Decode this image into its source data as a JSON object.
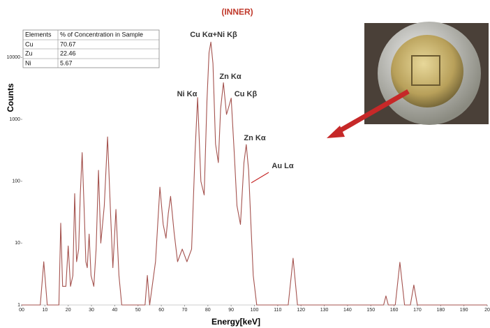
{
  "chart_data": {
    "type": "line",
    "title": "(INNER)",
    "xlabel": "Energy[keV]",
    "ylabel": "Counts",
    "log_y": true,
    "xlim": [
      0,
      200
    ],
    "ylim": [
      1,
      30000
    ],
    "xticks": [
      {
        "value": 0,
        "label": "00"
      },
      10,
      20,
      30,
      40,
      50,
      60,
      70,
      80,
      90,
      100,
      110,
      120,
      130,
      140,
      150,
      160,
      170,
      180,
      190,
      {
        "value": 200,
        "label": "20"
      }
    ],
    "yticks": [
      1,
      10,
      100,
      1000,
      10000
    ],
    "x": [
      0,
      8,
      9.5,
      11,
      16,
      16.8,
      17.6,
      19,
      20,
      21,
      22,
      22.8,
      23.6,
      24.5,
      25.2,
      26,
      26.8,
      27.6,
      28.2,
      29,
      29.8,
      31,
      32,
      33,
      34,
      35.5,
      36.9,
      38.2,
      39.2,
      40.5,
      41.8,
      43,
      53,
      54,
      55,
      57.5,
      59.4,
      60.8,
      62,
      63,
      64,
      65.5,
      67,
      69,
      71,
      73,
      74.5,
      75.6,
      77,
      78.4,
      79.6,
      80.5,
      81.3,
      82.2,
      83.3,
      84.5,
      85.5,
      86.7,
      88,
      88.8,
      90,
      91.3,
      92.5,
      94,
      95.5,
      96.5,
      97.5,
      98.5,
      99.5,
      101,
      114.5,
      116.6,
      118.5,
      155.5,
      156.5,
      157.5,
      160.5,
      162.5,
      164.5,
      167,
      168.5,
      170,
      200
    ],
    "series": [
      {
        "color": "#a4524e",
        "values": [
          1,
          1,
          5,
          1,
          1,
          21,
          2,
          2,
          9,
          2,
          3,
          63,
          5,
          8,
          60,
          290,
          40,
          5,
          4,
          14,
          3,
          2,
          8,
          150,
          10,
          40,
          520,
          30,
          4,
          35,
          3,
          1,
          1,
          3,
          1,
          5,
          80,
          20,
          12,
          30,
          57,
          15,
          5,
          8,
          5,
          8,
          300,
          2250,
          100,
          60,
          2000,
          12000,
          17700,
          8000,
          400,
          200,
          1500,
          3900,
          1200,
          1500,
          2200,
          300,
          40,
          20,
          200,
          390,
          150,
          20,
          3,
          1,
          1,
          5.7,
          1,
          1,
          1.4,
          1,
          1,
          4.9,
          1,
          1,
          2.1,
          1,
          1
        ]
      }
    ],
    "annotations": [
      "Cu Kα+Ni Kβ",
      "Zn Kα",
      "Ni Kα",
      "Cu Kβ",
      "Zn Kα",
      "Au Lα"
    ]
  },
  "table": {
    "columns": [
      "Elements",
      "% of Concentration in Sample"
    ],
    "rows": [
      [
        "Cu",
        70.67
      ],
      [
        "Zu",
        22.46
      ],
      [
        "Ni",
        5.67
      ]
    ]
  }
}
